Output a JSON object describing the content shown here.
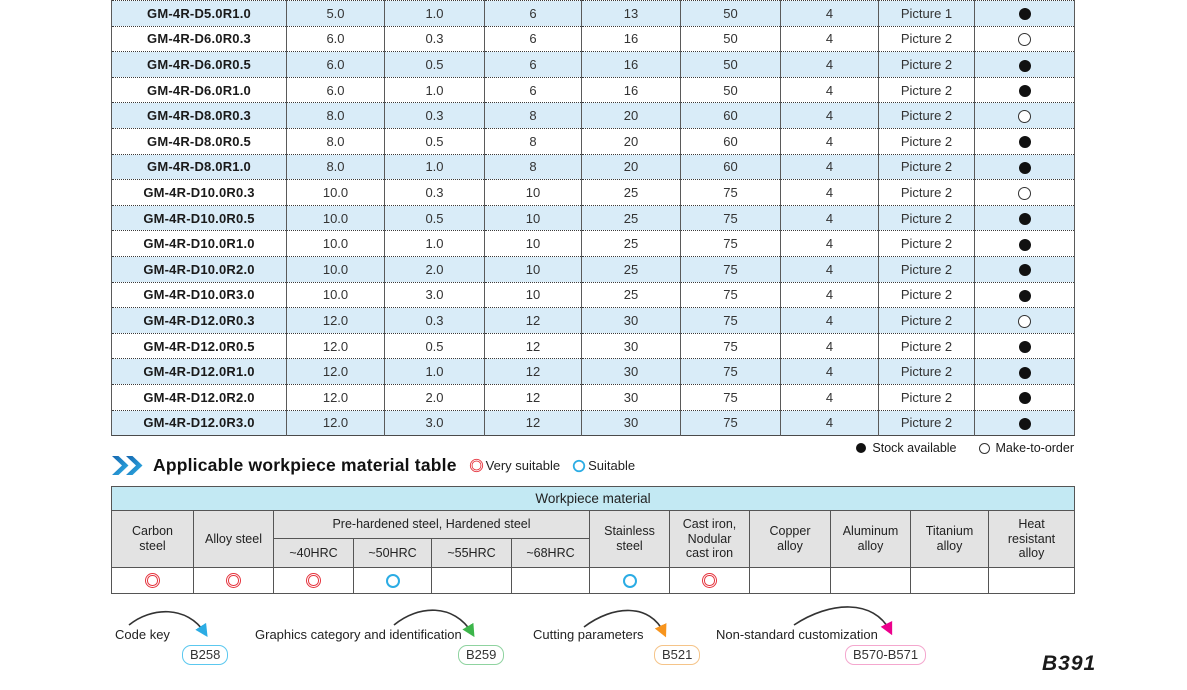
{
  "colors": {
    "row_stripe": "#d9ecf8",
    "workpiece_header_bg": "#c3e9f3",
    "column_header_bg": "#e3e3e3",
    "very_suitable": "#e5333d",
    "suitable": "#2bace4",
    "heading_icon_blue_dark": "#1565ae",
    "heading_icon_blue_light": "#2fb1e8"
  },
  "main_table": {
    "rows": [
      {
        "model": "GM-4R-D5.0R1.0",
        "values": [
          "5.0",
          "1.0",
          "6",
          "13",
          "50",
          "4"
        ],
        "picture": "Picture 1",
        "stock": "available"
      },
      {
        "model": "GM-4R-D6.0R0.3",
        "values": [
          "6.0",
          "0.3",
          "6",
          "16",
          "50",
          "4"
        ],
        "picture": "Picture 2",
        "stock": "make-to-order"
      },
      {
        "model": "GM-4R-D6.0R0.5",
        "values": [
          "6.0",
          "0.5",
          "6",
          "16",
          "50",
          "4"
        ],
        "picture": "Picture 2",
        "stock": "available"
      },
      {
        "model": "GM-4R-D6.0R1.0",
        "values": [
          "6.0",
          "1.0",
          "6",
          "16",
          "50",
          "4"
        ],
        "picture": "Picture 2",
        "stock": "available"
      },
      {
        "model": "GM-4R-D8.0R0.3",
        "values": [
          "8.0",
          "0.3",
          "8",
          "20",
          "60",
          "4"
        ],
        "picture": "Picture 2",
        "stock": "make-to-order"
      },
      {
        "model": "GM-4R-D8.0R0.5",
        "values": [
          "8.0",
          "0.5",
          "8",
          "20",
          "60",
          "4"
        ],
        "picture": "Picture 2",
        "stock": "available"
      },
      {
        "model": "GM-4R-D8.0R1.0",
        "values": [
          "8.0",
          "1.0",
          "8",
          "20",
          "60",
          "4"
        ],
        "picture": "Picture 2",
        "stock": "available"
      },
      {
        "model": "GM-4R-D10.0R0.3",
        "values": [
          "10.0",
          "0.3",
          "10",
          "25",
          "75",
          "4"
        ],
        "picture": "Picture 2",
        "stock": "make-to-order"
      },
      {
        "model": "GM-4R-D10.0R0.5",
        "values": [
          "10.0",
          "0.5",
          "10",
          "25",
          "75",
          "4"
        ],
        "picture": "Picture 2",
        "stock": "available"
      },
      {
        "model": "GM-4R-D10.0R1.0",
        "values": [
          "10.0",
          "1.0",
          "10",
          "25",
          "75",
          "4"
        ],
        "picture": "Picture 2",
        "stock": "available"
      },
      {
        "model": "GM-4R-D10.0R2.0",
        "values": [
          "10.0",
          "2.0",
          "10",
          "25",
          "75",
          "4"
        ],
        "picture": "Picture 2",
        "stock": "available"
      },
      {
        "model": "GM-4R-D10.0R3.0",
        "values": [
          "10.0",
          "3.0",
          "10",
          "25",
          "75",
          "4"
        ],
        "picture": "Picture 2",
        "stock": "available"
      },
      {
        "model": "GM-4R-D12.0R0.3",
        "values": [
          "12.0",
          "0.3",
          "12",
          "30",
          "75",
          "4"
        ],
        "picture": "Picture 2",
        "stock": "make-to-order"
      },
      {
        "model": "GM-4R-D12.0R0.5",
        "values": [
          "12.0",
          "0.5",
          "12",
          "30",
          "75",
          "4"
        ],
        "picture": "Picture 2",
        "stock": "available"
      },
      {
        "model": "GM-4R-D12.0R1.0",
        "values": [
          "12.0",
          "1.0",
          "12",
          "30",
          "75",
          "4"
        ],
        "picture": "Picture 2",
        "stock": "available"
      },
      {
        "model": "GM-4R-D12.0R2.0",
        "values": [
          "12.0",
          "2.0",
          "12",
          "30",
          "75",
          "4"
        ],
        "picture": "Picture 2",
        "stock": "available"
      },
      {
        "model": "GM-4R-D12.0R3.0",
        "values": [
          "12.0",
          "3.0",
          "12",
          "30",
          "75",
          "4"
        ],
        "picture": "Picture 2",
        "stock": "available"
      }
    ]
  },
  "stock_legend": {
    "available": "Stock available",
    "make_to_order": "Make-to-order"
  },
  "section": {
    "title": "Applicable workpiece material table",
    "legend_very": "Very suitable",
    "legend_suitable": "Suitable"
  },
  "workpiece_table": {
    "title": "Workpiece material",
    "col_carbon": "Carbon\nsteel",
    "col_alloy": "Alloy steel",
    "group_header": "Pre-hardened steel, Hardened steel",
    "sub_headers": [
      "~40HRC",
      "~50HRC",
      "~55HRC",
      "~68HRC"
    ],
    "col_stainless": "Stainless\nsteel",
    "col_cast_iron": "Cast iron,\nNodular\ncast iron",
    "col_copper": "Copper\nalloy",
    "col_aluminum": "Aluminum\nalloy",
    "col_titanium": "Titanium\nalloy",
    "col_heat": "Heat\nresistant\nalloy",
    "ratings": [
      "very",
      "very",
      "very",
      "suitable",
      "",
      "",
      "suitable",
      "very",
      "",
      "",
      "",
      ""
    ]
  },
  "footer": {
    "items": [
      {
        "label": "Code key",
        "badge": "B258",
        "badge_border": "#5bc8ef",
        "arrow_color": "#2bace4"
      },
      {
        "label": "Graphics category and identification",
        "badge": "B259",
        "badge_border": "#8fd3a0",
        "arrow_color": "#3cb54a"
      },
      {
        "label": "Cutting parameters",
        "badge": "B521",
        "badge_border": "#f5c489",
        "arrow_color": "#f7941d"
      },
      {
        "label": "Non-standard customization",
        "badge": "B570-B571",
        "badge_border": "#f4a7ce",
        "arrow_color": "#ec008c"
      }
    ],
    "page_number": "B391"
  }
}
